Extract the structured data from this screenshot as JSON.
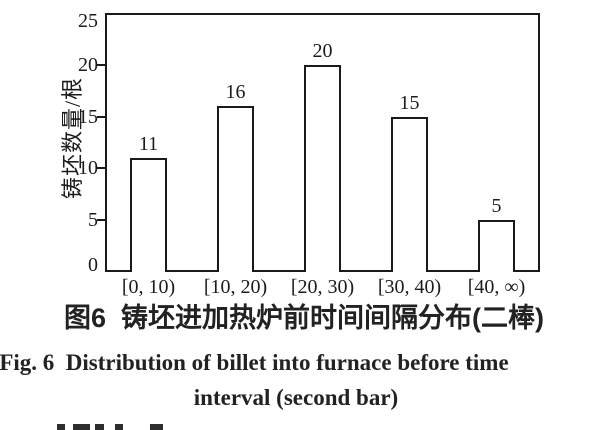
{
  "figure": {
    "caption_zh": "图6  铸坯进加热炉前时间间隔分布(二棒)",
    "caption_en_line1": "Fig. 6  Distribution of billet into furnace before time",
    "caption_en_line2": "interval (second bar)"
  },
  "chart_data": {
    "type": "bar",
    "title": "",
    "categories": [
      "[0, 10)",
      "[10, 20)",
      "[20, 30)",
      "[30, 40)",
      "[40, ∞)"
    ],
    "values": [
      11,
      16,
      20,
      15,
      5
    ],
    "data_labels": [
      11,
      16,
      20,
      15,
      5
    ],
    "xlabel": "",
    "ylabel": "铸坯数量/根",
    "ylim": [
      0,
      25
    ],
    "yticks": [
      0,
      5,
      10,
      15,
      20,
      25
    ],
    "grid": false,
    "legend": "none",
    "bar_fill_color": "#ffffff",
    "bar_border_color": "#1a1a1a",
    "text_color": "#1c1c1c"
  }
}
